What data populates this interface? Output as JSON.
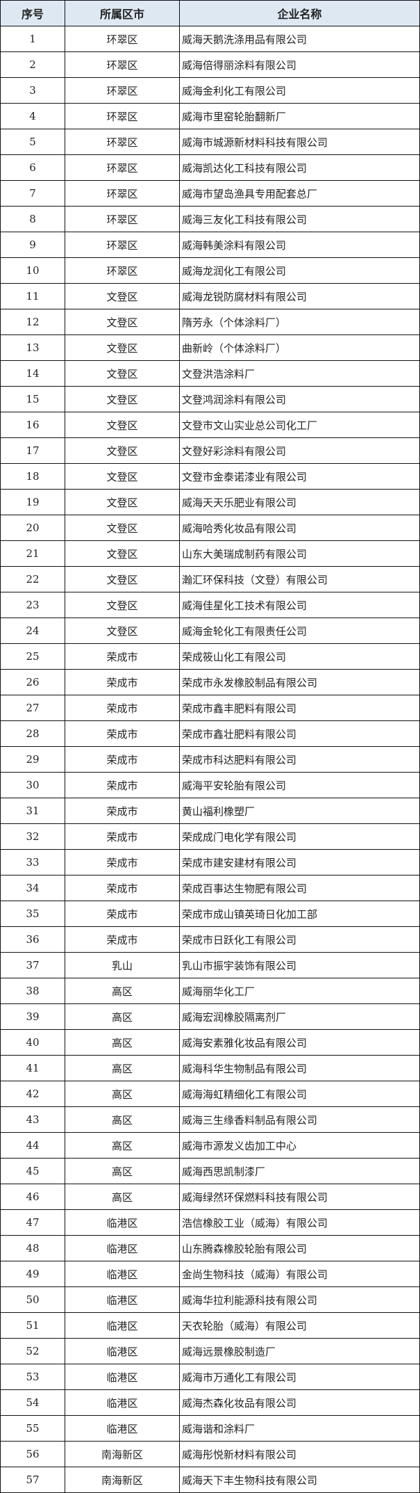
{
  "header": {
    "index": "序号",
    "district": "所属区市",
    "company": "企业名称"
  },
  "header_bg": "#dde8f3",
  "rows": [
    {
      "no": "1",
      "district": "环翠区",
      "company": "威海天鹅洗涤用品有限公司"
    },
    {
      "no": "2",
      "district": "环翠区",
      "company": "威海倍得丽涂料有限公司"
    },
    {
      "no": "3",
      "district": "环翠区",
      "company": "威海金利化工有限公司"
    },
    {
      "no": "4",
      "district": "环翠区",
      "company": "威海市里窑轮胎翻新厂"
    },
    {
      "no": "5",
      "district": "环翠区",
      "company": "威海市城源新材料科技有限公司"
    },
    {
      "no": "6",
      "district": "环翠区",
      "company": "威海凯达化工科技有限公司"
    },
    {
      "no": "7",
      "district": "环翠区",
      "company": "威海市望岛渔具专用配套总厂"
    },
    {
      "no": "8",
      "district": "环翠区",
      "company": "威海三友化工科技有限公司"
    },
    {
      "no": "9",
      "district": "环翠区",
      "company": "威海韩美涂料有限公司"
    },
    {
      "no": "10",
      "district": "环翠区",
      "company": "威海龙润化工有限公司"
    },
    {
      "no": "11",
      "district": "文登区",
      "company": "威海龙锐防腐材料有限公司"
    },
    {
      "no": "12",
      "district": "文登区",
      "company": "隋芳永（个体涂料厂）"
    },
    {
      "no": "13",
      "district": "文登区",
      "company": "曲新岭（个体涂料厂）"
    },
    {
      "no": "14",
      "district": "文登区",
      "company": "文登洪浩涂料厂"
    },
    {
      "no": "15",
      "district": "文登区",
      "company": "文登鸿润涂料有限公司"
    },
    {
      "no": "16",
      "district": "文登区",
      "company": "文登市文山实业总公司化工厂"
    },
    {
      "no": "17",
      "district": "文登区",
      "company": "文登好彩涂料有限公司"
    },
    {
      "no": "18",
      "district": "文登区",
      "company": "文登市金泰诺漆业有限公司"
    },
    {
      "no": "19",
      "district": "文登区",
      "company": "威海天天乐肥业有限公司"
    },
    {
      "no": "20",
      "district": "文登区",
      "company": "威海哈秀化妆品有限公司"
    },
    {
      "no": "21",
      "district": "文登区",
      "company": "山东大美瑞成制药有限公司"
    },
    {
      "no": "22",
      "district": "文登区",
      "company": "瀚汇环保科技（文登）有限公司"
    },
    {
      "no": "23",
      "district": "文登区",
      "company": "威海佳星化工技术有限公司"
    },
    {
      "no": "24",
      "district": "文登区",
      "company": "威海金轮化工有限责任公司"
    },
    {
      "no": "25",
      "district": "荣成市",
      "company": "荣成筱山化工有限公司"
    },
    {
      "no": "26",
      "district": "荣成市",
      "company": "荣成市永发橡胶制品有限公司"
    },
    {
      "no": "27",
      "district": "荣成市",
      "company": "荣成市鑫丰肥料有限公司"
    },
    {
      "no": "28",
      "district": "荣成市",
      "company": "荣成市鑫壮肥料有限公司"
    },
    {
      "no": "29",
      "district": "荣成市",
      "company": "荣成市科达肥料有限公司"
    },
    {
      "no": "30",
      "district": "荣成市",
      "company": "威海平安轮胎有限公司"
    },
    {
      "no": "31",
      "district": "荣成市",
      "company": "黄山福利橡塑厂"
    },
    {
      "no": "32",
      "district": "荣成市",
      "company": "荣成成门电化学有限公司"
    },
    {
      "no": "33",
      "district": "荣成市",
      "company": "荣成市建安建材有限公司"
    },
    {
      "no": "34",
      "district": "荣成市",
      "company": "荣成百事达生物肥有限公司"
    },
    {
      "no": "35",
      "district": "荣成市",
      "company": "荣成市成山镇英琦日化加工部"
    },
    {
      "no": "36",
      "district": "荣成市",
      "company": "荣成市日跃化工有限公司"
    },
    {
      "no": "37",
      "district": "乳山",
      "company": "乳山市振宇装饰有限公司"
    },
    {
      "no": "38",
      "district": "高区",
      "company": "威海丽华化工厂"
    },
    {
      "no": "39",
      "district": "高区",
      "company": "威海宏润橡胶隔离剂厂"
    },
    {
      "no": "40",
      "district": "高区",
      "company": "威海安素雅化妆品有限公司"
    },
    {
      "no": "41",
      "district": "高区",
      "company": "威海科华生物制品有限公司"
    },
    {
      "no": "42",
      "district": "高区",
      "company": "威海海虹精细化工有限公司"
    },
    {
      "no": "43",
      "district": "高区",
      "company": "威海三生缘香料制品有限公司"
    },
    {
      "no": "44",
      "district": "高区",
      "company": "威海市源发义齿加工中心"
    },
    {
      "no": "45",
      "district": "高区",
      "company": "威海西思凯制漆厂"
    },
    {
      "no": "46",
      "district": "高区",
      "company": "威海绿然环保燃料科技有限公司"
    },
    {
      "no": "47",
      "district": "临港区",
      "company": "浩信橡胶工业（威海）有限公司"
    },
    {
      "no": "48",
      "district": "临港区",
      "company": "山东腾森橡胶轮胎有限公司"
    },
    {
      "no": "49",
      "district": "临港区",
      "company": "金尚生物科技（威海）有限公司"
    },
    {
      "no": "50",
      "district": "临港区",
      "company": "威海华拉利能源科技有限公司"
    },
    {
      "no": "51",
      "district": "临港区",
      "company": "天衣轮胎（威海）有限公司"
    },
    {
      "no": "52",
      "district": "临港区",
      "company": "威海远景橡胶制造厂"
    },
    {
      "no": "53",
      "district": "临港区",
      "company": "威海市万通化工有限公司"
    },
    {
      "no": "54",
      "district": "临港区",
      "company": "威海杰森化妆品有限公司"
    },
    {
      "no": "55",
      "district": "临港区",
      "company": "威海谐和涂料厂"
    },
    {
      "no": "56",
      "district": "南海新区",
      "company": "威海彤悦新材料有限公司"
    },
    {
      "no": "57",
      "district": "南海新区",
      "company": "威海天下丰生物科技有限公司"
    }
  ]
}
